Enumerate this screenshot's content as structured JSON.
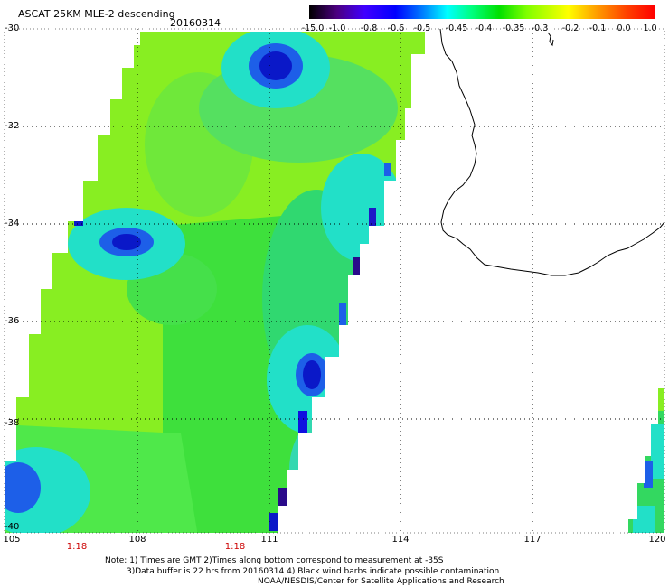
{
  "title": "ASCAT 25KM MLE-2 descending",
  "date": "20160314",
  "colorbar": {
    "labels": [
      "-15.0",
      "-1.0",
      "-0.8",
      "-0.6",
      "-0.5",
      "-0.45",
      "-0.4",
      "-0.35",
      "-0.3",
      "-0.2",
      "-0.1",
      "0.0",
      "1.0"
    ],
    "colors": [
      "#000000",
      "#4b007f",
      "#4000ff",
      "#0000ff",
      "#0080ff",
      "#00ffff",
      "#00ff80",
      "#00e000",
      "#80ff00",
      "#ffff00",
      "#ffa000",
      "#ff4000",
      "#ff0000"
    ]
  },
  "lat_labels": [
    "-30",
    "-32",
    "-34",
    "-36",
    "-38",
    "-40"
  ],
  "lon_labels": [
    "105",
    "108",
    "111",
    "114",
    "117",
    "120"
  ],
  "time_labels": [
    "1:18",
    "1:18"
  ],
  "notes": [
    "Note: 1) Times are GMT 2)Times along bottom correspond to measurement at -35S",
    "3)Data buffer is 22 hrs from 20160314 4) Black wind barbs indicate possible contamination",
    "NOAA/NESDIS/Center for Satellite Applications and Research"
  ]
}
